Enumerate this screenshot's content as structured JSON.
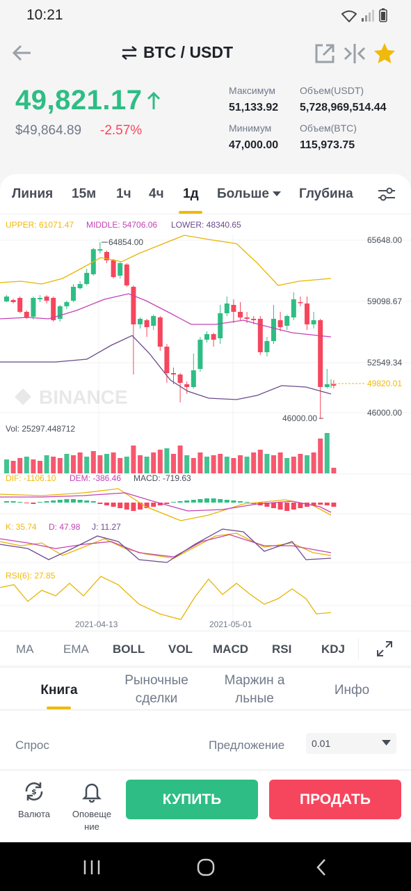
{
  "status_bar": {
    "time": "10:21"
  },
  "header": {
    "pair": "BTC / USDT"
  },
  "ticker": {
    "last_price": "49,821.17",
    "usd_price": "$49,864.89",
    "change_pct": "-2.57%",
    "high_label": "Максимум",
    "high_value": "51,133.92",
    "low_label": "Минимум",
    "low_value": "47,000.00",
    "vol_usdt_label": "Объем(USDT)",
    "vol_usdt_value": "5,728,969,514.44",
    "vol_btc_label": "Объем(BTC)",
    "vol_btc_value": "115,973.75"
  },
  "timeframes": [
    "Линия",
    "15м",
    "1ч",
    "4ч",
    "1д",
    "Больше",
    "Глубина"
  ],
  "active_timeframe": "1д",
  "boll": {
    "upper": "UPPER: 61071.47",
    "middle": "MIDDLE: 54706.06",
    "lower": "LOWER: 48340.65"
  },
  "price_axis": [
    "65648.00",
    "59098.67",
    "52549.34",
    "46000.00"
  ],
  "current_price_tag": "49820.01",
  "high_marker": "64854.00",
  "low_marker": "46000.00",
  "watermark": "BINANCE",
  "volume_label": "Vol: 25297.448712",
  "macd": {
    "dif": "DIF: -1106.10",
    "dem": "DEM: -386.46",
    "macd": "MACD: -719.63"
  },
  "kdj": {
    "k": "K: 35.74",
    "d": "D: 47.98",
    "j": "J: 11.27"
  },
  "rsi_label": "RSI(6): 27.85",
  "dates": [
    "2021-04-13",
    "2021-05-01"
  ],
  "indicators": [
    "MA",
    "EMA",
    "BOLL",
    "VOL",
    "MACD",
    "RSI",
    "KDJ"
  ],
  "bottom_tabs": [
    "Книга",
    "Рыночные сделки",
    "Маржин альные",
    "Инфо"
  ],
  "book": {
    "bid": "Спрос",
    "ask": "Предложение",
    "precision": "0.01"
  },
  "bottom_bar": {
    "currency": "Валюта",
    "alerts": "Оповеще ние",
    "buy": "КУПИТЬ",
    "sell": "ПРОДАТЬ"
  },
  "colors": {
    "up": "#2ebd85",
    "down": "#f6465d",
    "accent": "#f0b90b",
    "boll_mid": "#c341b4",
    "boll_low": "#6b4a8c"
  },
  "chart_data": {
    "type": "candlestick",
    "y_range": [
      46000,
      65648
    ],
    "current_price": 49820.01,
    "x_tick_labels": [
      "2021-04-13",
      "2021-05-01"
    ],
    "series": [
      {
        "name": "UPPER",
        "value": 61071.47
      },
      {
        "name": "MIDDLE",
        "value": 54706.06
      },
      {
        "name": "LOWER",
        "value": 48340.65
      }
    ]
  }
}
